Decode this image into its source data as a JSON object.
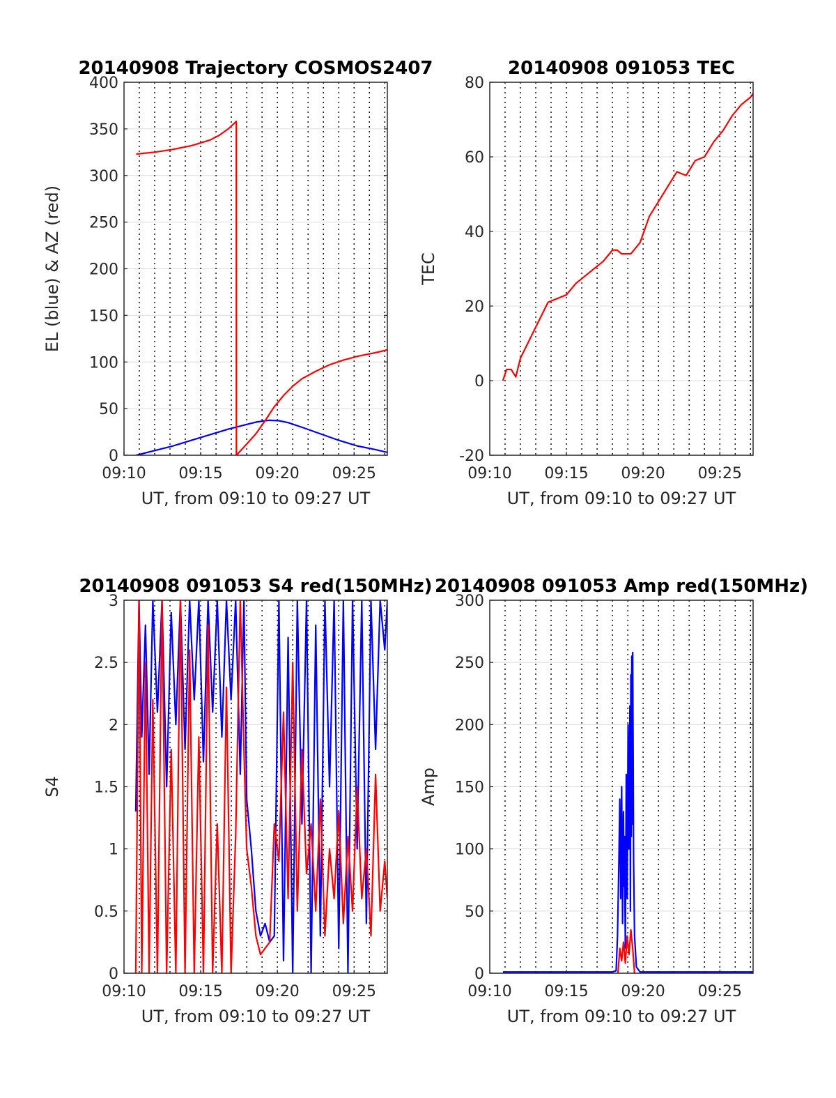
{
  "chart_data": [
    {
      "type": "line",
      "title": "20140908 Trajectory COSMOS2407",
      "xlabel": "UT, from 09:10 to 09:27 UT",
      "ylabel": "EL (blue) & AZ (red)",
      "xlim": [
        9.1667,
        9.4528
      ],
      "ylim": [
        0,
        400
      ],
      "xticks": [
        9.1667,
        9.25,
        9.3333,
        9.4167
      ],
      "xtick_labels": [
        "09:10",
        "09:15",
        "09:20",
        "09:25"
      ],
      "yticks": [
        0,
        50,
        100,
        150,
        200,
        250,
        300,
        350,
        400
      ],
      "ytick_labels": [
        "0",
        "50",
        "100",
        "150",
        "200",
        "250",
        "300",
        "350",
        "400"
      ],
      "grid": true,
      "series": [
        {
          "color": "#0000ff",
          "x": [
            9.18,
            9.2,
            9.22,
            9.24,
            9.26,
            9.28,
            9.3,
            9.31,
            9.32,
            9.325,
            9.335,
            9.345,
            9.36,
            9.38,
            9.4,
            9.42,
            9.44,
            9.4528
          ],
          "y": [
            0,
            5,
            10,
            16,
            22,
            28,
            33,
            35.5,
            37,
            37.5,
            37,
            35,
            30,
            23,
            16,
            10,
            6,
            3
          ]
        },
        {
          "color": "#ff0000",
          "x": [
            9.18,
            9.2,
            9.22,
            9.24,
            9.26,
            9.27,
            9.28,
            9.2887,
            9.2888,
            9.3,
            9.31,
            9.32,
            9.33,
            9.34,
            9.35,
            9.36,
            9.375,
            9.39,
            9.405,
            9.42,
            9.44,
            9.4528
          ],
          "y": [
            323,
            325,
            328,
            332,
            338,
            343,
            350,
            358,
            0,
            12,
            23,
            37,
            52,
            64,
            74,
            82,
            90,
            97,
            102,
            106,
            110,
            113
          ]
        }
      ]
    },
    {
      "type": "line",
      "title": "20140908 091053 TEC",
      "xlabel": "UT, from 09:10 to 09:27 UT",
      "ylabel": "TEC",
      "xlim": [
        9.1667,
        9.4528
      ],
      "ylim": [
        -20,
        80
      ],
      "xticks": [
        9.1667,
        9.25,
        9.3333,
        9.4167
      ],
      "xtick_labels": [
        "09:10",
        "09:15",
        "09:20",
        "09:25"
      ],
      "yticks": [
        -20,
        0,
        20,
        40,
        60,
        80
      ],
      "ytick_labels": [
        "-20",
        "0",
        "20",
        "40",
        "60",
        "80"
      ],
      "grid": true,
      "series": [
        {
          "color": "#ff0000",
          "x": [
            9.181,
            9.185,
            9.19,
            9.195,
            9.2,
            9.21,
            9.22,
            9.23,
            9.24,
            9.25,
            9.26,
            9.27,
            9.28,
            9.29,
            9.3,
            9.305,
            9.31,
            9.32,
            9.33,
            9.34,
            9.35,
            9.36,
            9.37,
            9.38,
            9.39,
            9.4,
            9.41,
            9.42,
            9.43,
            9.44,
            9.45,
            9.4528
          ],
          "y": [
            0,
            3,
            3,
            1,
            6,
            11,
            16,
            21,
            22,
            23,
            26,
            28,
            30,
            32,
            35,
            35,
            34,
            34,
            37,
            44,
            48,
            52,
            56,
            55,
            59,
            60,
            64,
            67,
            71,
            74,
            76,
            77
          ]
        }
      ]
    },
    {
      "type": "line",
      "title": "20140908 091053 S4 red(150MHz)",
      "xlabel": "UT, from 09:10 to 09:27 UT",
      "ylabel": "S4",
      "xlim": [
        9.1667,
        9.4528
      ],
      "ylim": [
        0,
        3
      ],
      "xticks": [
        9.1667,
        9.25,
        9.3333,
        9.4167
      ],
      "xtick_labels": [
        "09:10",
        "09:15",
        "09:20",
        "09:25"
      ],
      "yticks": [
        0,
        0.5,
        1,
        1.5,
        2,
        2.5,
        3
      ],
      "ytick_labels": [
        "0",
        "0.5",
        "1",
        "1.5",
        "2",
        "2.5",
        "3"
      ],
      "grid": true,
      "series": [
        {
          "color": "#0000ff",
          "x": [
            9.1795,
            9.183,
            9.186,
            9.19,
            9.194,
            9.198,
            9.203,
            9.208,
            9.213,
            9.218,
            9.223,
            9.228,
            9.233,
            9.238,
            9.243,
            9.248,
            9.253,
            9.258,
            9.263,
            9.268,
            9.273,
            9.278,
            9.283,
            9.288,
            9.293,
            9.297,
            9.3,
            9.305,
            9.31,
            9.315,
            9.32,
            9.325,
            9.33,
            9.335,
            9.34,
            9.345,
            9.35,
            9.355,
            9.36,
            9.365,
            9.37,
            9.375,
            9.38,
            9.385,
            9.39,
            9.395,
            9.4,
            9.405,
            9.41,
            9.415,
            9.42,
            9.425,
            9.43,
            9.435,
            9.44,
            9.445,
            9.45,
            9.4528
          ],
          "y": [
            1.3,
            3.0,
            1.9,
            2.8,
            1.6,
            3.0,
            2.1,
            3.0,
            1.5,
            2.9,
            2.0,
            3.0,
            1.8,
            3.0,
            2.2,
            3.0,
            1.7,
            3.0,
            2.1,
            3.0,
            1.9,
            3.0,
            2.2,
            3.0,
            1.6,
            3.0,
            1.4,
            1.0,
            0.5,
            0.3,
            0.4,
            0.25,
            0.3,
            3.0,
            0.1,
            2.7,
            0.0,
            3.0,
            1.2,
            3.0,
            0.0,
            2.8,
            0.3,
            3.0,
            1.5,
            3.0,
            0.2,
            3.0,
            0.0,
            3.0,
            1.0,
            3.0,
            0.4,
            3.0,
            1.8,
            3.0,
            2.6,
            3.0
          ]
        },
        {
          "color": "#ff0000",
          "x": [
            9.1795,
            9.183,
            9.186,
            9.19,
            9.194,
            9.198,
            9.203,
            9.208,
            9.213,
            9.218,
            9.223,
            9.228,
            9.233,
            9.238,
            9.243,
            9.248,
            9.253,
            9.258,
            9.263,
            9.268,
            9.273,
            9.278,
            9.283,
            9.288,
            9.293,
            9.297,
            9.3,
            9.305,
            9.31,
            9.315,
            9.32,
            9.325,
            9.33,
            9.335,
            9.34,
            9.345,
            9.35,
            9.355,
            9.36,
            9.365,
            9.37,
            9.375,
            9.38,
            9.385,
            9.39,
            9.395,
            9.4,
            9.405,
            9.41,
            9.415,
            9.42,
            9.425,
            9.43,
            9.435,
            9.44,
            9.445,
            9.45,
            9.4528
          ],
          "y": [
            0.0,
            3.0,
            0.0,
            2.5,
            0.0,
            2.2,
            0.0,
            3.0,
            0.0,
            1.8,
            0.0,
            3.0,
            0.0,
            2.6,
            0.0,
            1.9,
            0.0,
            2.8,
            0.0,
            1.2,
            0.0,
            2.3,
            0.0,
            1.1,
            3.0,
            1.8,
            1.0,
            0.7,
            0.3,
            0.15,
            0.2,
            0.25,
            1.2,
            0.9,
            2.1,
            0.6,
            2.5,
            0.5,
            1.8,
            0.8,
            1.2,
            0.5,
            1.4,
            0.3,
            1.0,
            0.6,
            1.3,
            0.4,
            1.1,
            0.5,
            1.5,
            0.6,
            1.0,
            0.3,
            1.6,
            0.5,
            0.9,
            0.6
          ]
        }
      ]
    },
    {
      "type": "line",
      "title": "20140908 091053 Amp red(150MHz)",
      "xlabel": "UT, from 09:10 to 09:27 UT",
      "ylabel": "Amp",
      "xlim": [
        9.1667,
        9.4528
      ],
      "ylim": [
        0,
        300
      ],
      "xticks": [
        9.1667,
        9.25,
        9.3333,
        9.4167
      ],
      "xtick_labels": [
        "09:10",
        "09:15",
        "09:20",
        "09:25"
      ],
      "yticks": [
        0,
        50,
        100,
        150,
        200,
        250,
        300
      ],
      "ytick_labels": [
        "0",
        "50",
        "100",
        "150",
        "200",
        "250",
        "300"
      ],
      "grid": true,
      "series": [
        {
          "color": "#0000ff",
          "x": [
            9.181,
            9.2,
            9.22,
            9.24,
            9.26,
            9.28,
            9.3,
            9.304,
            9.3055,
            9.307,
            9.308,
            9.309,
            9.31,
            9.311,
            9.312,
            9.3125,
            9.313,
            9.314,
            9.315,
            9.316,
            9.317,
            9.318,
            9.319,
            9.3195,
            9.32,
            9.3205,
            9.321,
            9.3215,
            9.322,
            9.323,
            9.324,
            9.326,
            9.33,
            9.35,
            9.38,
            9.41,
            9.44,
            9.4528
          ],
          "y": [
            1,
            1,
            1,
            1,
            1,
            1,
            1,
            2,
            30,
            90,
            140,
            60,
            150,
            40,
            130,
            70,
            110,
            20,
            160,
            60,
            200,
            100,
            215,
            50,
            240,
            110,
            255,
            120,
            258,
            90,
            30,
            5,
            1,
            1,
            1,
            1,
            1,
            1
          ]
        },
        {
          "color": "#ff0000",
          "x": [
            9.306,
            9.308,
            9.31,
            9.312,
            9.314,
            9.316,
            9.318,
            9.32,
            9.322,
            9.324
          ],
          "y": [
            0,
            20,
            10,
            25,
            8,
            30,
            15,
            35,
            20,
            0
          ]
        }
      ]
    }
  ]
}
